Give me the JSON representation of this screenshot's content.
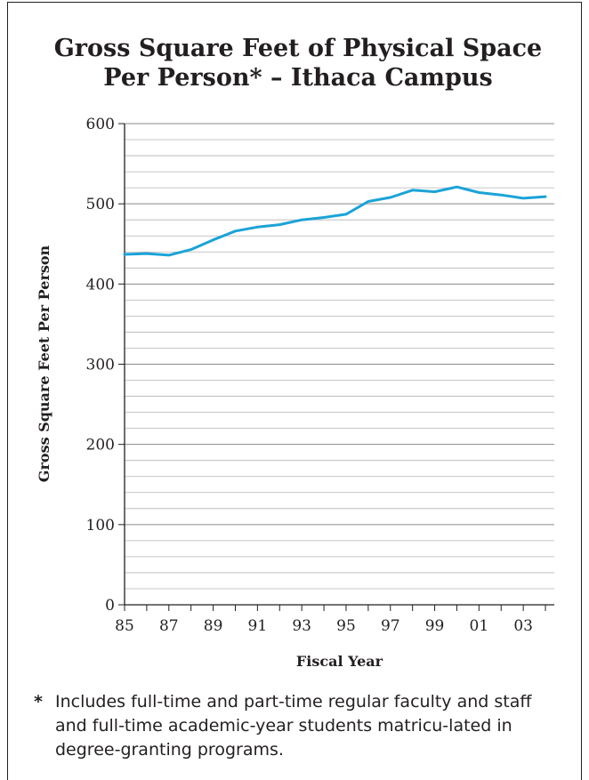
{
  "chart_data": {
    "type": "line",
    "title": [
      "Gross Square Feet of Physical Space",
      "Per Person* – Ithaca Campus"
    ],
    "xlabel": "Fiscal Year",
    "ylabel": "Gross Square Feet Per Person",
    "x": [
      1985,
      1986,
      1987,
      1988,
      1989,
      1990,
      1991,
      1992,
      1993,
      1994,
      1995,
      1996,
      1997,
      1998,
      1999,
      2000,
      2001,
      2002,
      2003,
      2004
    ],
    "x_tick_labels": [
      "85",
      "87",
      "89",
      "91",
      "93",
      "95",
      "97",
      "99",
      "01",
      "03"
    ],
    "y_tick_labels": [
      "0",
      "100",
      "200",
      "300",
      "400",
      "500",
      "600"
    ],
    "ylim": [
      0,
      600
    ],
    "y_major_step": 100,
    "y_minor_step": 20,
    "grid": true,
    "series": [
      {
        "color": "#1ba3d8",
        "values": [
          437,
          438,
          436,
          443,
          455,
          466,
          471,
          474,
          480,
          483,
          487,
          503,
          508,
          517,
          515,
          521,
          514,
          511,
          507,
          509
        ]
      }
    ]
  },
  "footnote": {
    "marker": "*",
    "text": "Includes full-time and part-time regular faculty and staff and full-time academic-year students matricu-lated in degree-granting programs."
  }
}
